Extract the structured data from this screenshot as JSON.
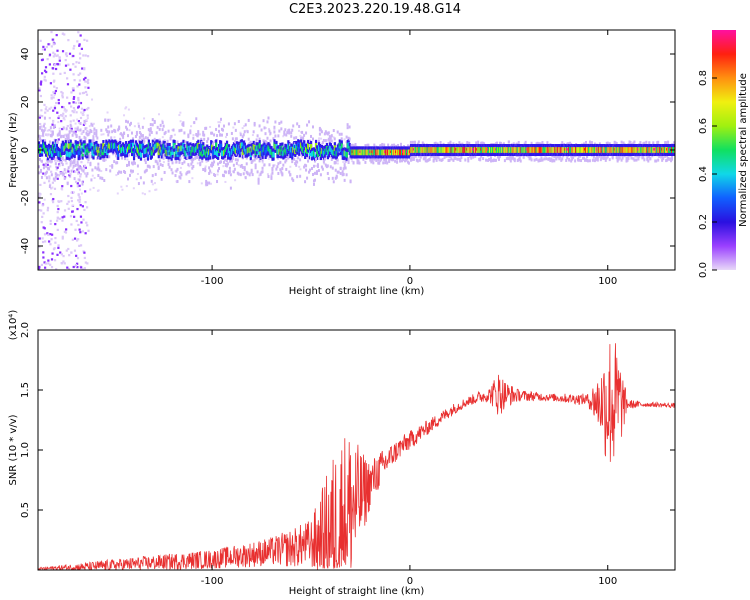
{
  "title": "C2E3.2023.220.19.48.G14",
  "chart_data": [
    {
      "type": "heatmap",
      "xlabel": "Height of straight line (km)",
      "ylabel": "Frequency (Hz)",
      "xlim": [
        -188,
        134
      ],
      "ylim": [
        -50,
        50
      ],
      "x_ticks": [
        -100,
        0,
        100
      ],
      "y_ticks": [
        -40,
        -20,
        0,
        20,
        40
      ],
      "colorbar": {
        "label": "Normalized spectral amplitude",
        "range": [
          0,
          1
        ],
        "ticks": [
          0.0,
          0.2,
          0.4,
          0.6,
          0.8
        ],
        "colormap": [
          "#e8d8f8",
          "#9a40ff",
          "#2a10e0",
          "#1060ff",
          "#10d8e8",
          "#10e060",
          "#a0f010",
          "#f0f010",
          "#ff9010",
          "#ff2010",
          "#ff10a0"
        ]
      },
      "grid": false
    },
    {
      "type": "line",
      "xlabel": "Height of straight line (km)",
      "ylabel": "SNR (10 * v/v)",
      "y_multiplier": "(x10⁴)",
      "xlim": [
        -188,
        134
      ],
      "ylim": [
        0,
        2.0
      ],
      "x_ticks": [
        -100,
        0,
        100
      ],
      "y_ticks": [
        0.5,
        1.0,
        1.5,
        2.0
      ],
      "y_tick_labels": [
        "0.5",
        "1.0",
        "1.5",
        "2.0"
      ],
      "line_color": "#e83030",
      "trend": {
        "x": [
          -188,
          -160,
          -130,
          -100,
          -80,
          -60,
          -45,
          -38,
          -30,
          -25,
          -20,
          -15,
          -10,
          -5,
          0,
          5,
          10,
          15,
          20,
          25,
          30,
          35,
          40,
          45,
          50,
          60,
          70,
          80,
          90,
          95,
          100,
          105,
          110,
          115,
          120,
          134
        ],
        "y": [
          0.01,
          0.03,
          0.06,
          0.09,
          0.13,
          0.18,
          0.25,
          0.35,
          0.5,
          0.6,
          0.72,
          0.84,
          0.94,
          1.02,
          1.08,
          1.14,
          1.2,
          1.26,
          1.32,
          1.37,
          1.41,
          1.44,
          1.46,
          1.47,
          1.46,
          1.45,
          1.44,
          1.43,
          1.42,
          1.4,
          1.4,
          1.39,
          1.38,
          1.38,
          1.38,
          1.37
        ]
      },
      "noise_envelope": {
        "x": [
          -188,
          -150,
          -100,
          -70,
          -50,
          -40,
          -35,
          -30,
          -25,
          -20,
          -10,
          0,
          10,
          20,
          30,
          40,
          45,
          48,
          55,
          70,
          90,
          97,
          100,
          103,
          106,
          110,
          120,
          134
        ],
        "y": [
          0.01,
          0.05,
          0.08,
          0.12,
          0.2,
          0.6,
          0.75,
          0.7,
          0.4,
          0.2,
          0.1,
          0.08,
          0.06,
          0.05,
          0.04,
          0.06,
          0.2,
          0.12,
          0.05,
          0.03,
          0.05,
          0.3,
          0.6,
          0.6,
          0.4,
          0.04,
          0.02,
          0.02
        ]
      },
      "grid": false
    }
  ]
}
